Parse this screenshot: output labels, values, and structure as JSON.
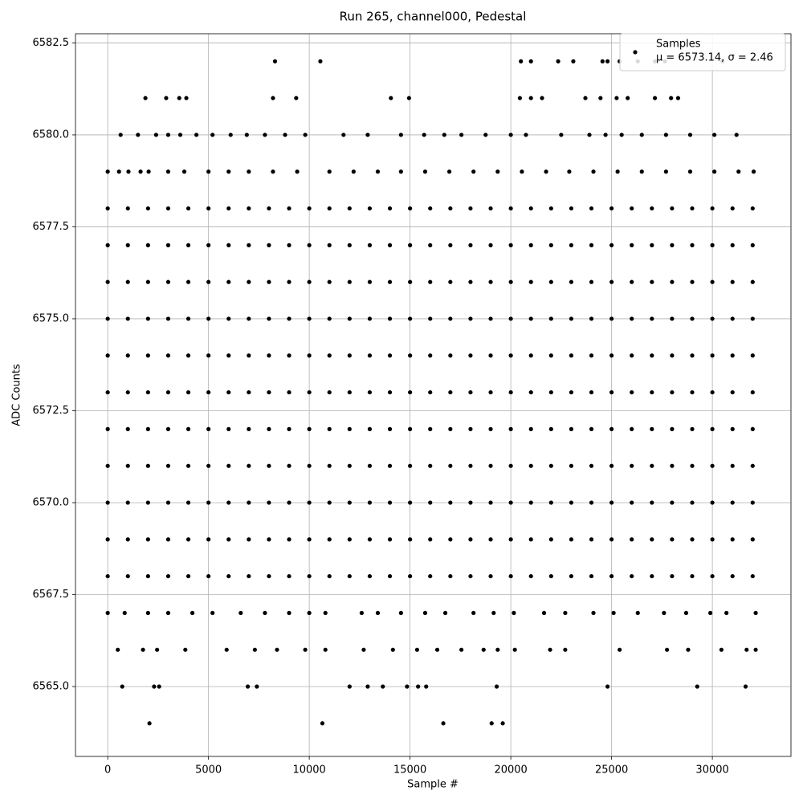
{
  "chart_data": {
    "type": "scatter",
    "title": "Run 265, channel000, Pedestal",
    "x_label": "Sample #",
    "y_label": "ADC Counts",
    "xlim": [
      -1600,
      33900
    ],
    "ylim": [
      6563.1,
      6582.75
    ],
    "xticks": [
      0,
      5000,
      10000,
      15000,
      20000,
      25000,
      30000
    ],
    "yticks": [
      {
        "value": 6565,
        "label": "6565.0"
      },
      {
        "value": 6567.5,
        "label": "6567.5"
      },
      {
        "value": 6570,
        "label": "6570.0"
      },
      {
        "value": 6572.5,
        "label": "6572.5"
      },
      {
        "value": 6575,
        "label": "6575.0"
      },
      {
        "value": 6577.5,
        "label": "6577.5"
      },
      {
        "value": 6580,
        "label": "6580.0"
      },
      {
        "value": 6582.5,
        "label": "6582.5"
      }
    ],
    "grid": true,
    "legend": "upper right",
    "legend_note": "μ = 6573.14, σ = 2.46",
    "series": [
      {
        "name": "Samples",
        "color": "#000000",
        "x": [
          0,
          1000,
          2000,
          3000,
          4000,
          5000,
          6000,
          7000,
          8000,
          9000,
          10000,
          11000,
          12000,
          13000,
          14000,
          15000,
          16000,
          17000,
          18000,
          19000,
          20000,
          21000,
          22000,
          23000,
          24000,
          25000,
          26000,
          27000,
          28000,
          29000,
          30000,
          31000,
          32000,
          0,
          1000,
          2000,
          3000,
          4000,
          5000,
          6000,
          7000,
          8000,
          9000,
          10000,
          11000,
          12000,
          13000,
          14000,
          15000,
          16000,
          17000,
          18000,
          19000,
          20000,
          21000,
          22000,
          23000,
          24000,
          25000,
          26000,
          27000,
          28000,
          29000,
          30000,
          31000,
          32000,
          0,
          1000,
          2000,
          3000,
          4000,
          5000,
          6000,
          7000,
          8000,
          9000,
          10000,
          11000,
          12000,
          13000,
          14000,
          15000,
          16000,
          17000,
          18000,
          19000,
          20000,
          21000,
          22000,
          23000,
          24000,
          25000,
          26000,
          27000,
          28000,
          29000,
          30000,
          31000,
          32000,
          0,
          1000,
          2000,
          3000,
          4000,
          5000,
          6000,
          7000,
          8000,
          9000,
          10000,
          11000,
          12000,
          13000,
          14000,
          15000,
          16000,
          17000,
          18000,
          19000,
          20000,
          21000,
          22000,
          23000,
          24000,
          25000,
          26000,
          27000,
          28000,
          29000,
          30000,
          31000,
          32000,
          0,
          1000,
          2000,
          3000,
          4000,
          5000,
          6000,
          7000,
          8000,
          9000,
          10000,
          11000,
          12000,
          13000,
          14000,
          15000,
          16000,
          17000,
          18000,
          19000,
          20000,
          21000,
          22000,
          23000,
          24000,
          25000,
          26000,
          27000,
          28000,
          29000,
          30000,
          31000,
          32000,
          0,
          1000,
          2000,
          3000,
          4000,
          5000,
          6000,
          7000,
          8000,
          9000,
          10000,
          11000,
          12000,
          13000,
          14000,
          15000,
          16000,
          17000,
          18000,
          19000,
          20000,
          21000,
          22000,
          23000,
          24000,
          25000,
          26000,
          27000,
          28000,
          29000,
          30000,
          31000,
          32000,
          0,
          1000,
          2000,
          3000,
          4000,
          5000,
          6000,
          7000,
          8000,
          9000,
          10000,
          11000,
          12000,
          13000,
          14000,
          15000,
          16000,
          17000,
          18000,
          19000,
          20000,
          21000,
          22000,
          23000,
          24000,
          25000,
          26000,
          27000,
          28000,
          29000,
          30000,
          31000,
          32000,
          0,
          1000,
          2000,
          3000,
          4000,
          5000,
          6000,
          7000,
          8000,
          9000,
          10000,
          11000,
          12000,
          13000,
          14000,
          15000,
          16000,
          17000,
          18000,
          19000,
          20000,
          21000,
          22000,
          23000,
          24000,
          25000,
          26000,
          27000,
          28000,
          29000,
          30000,
          31000,
          32000,
          0,
          1000,
          2000,
          3000,
          4000,
          5000,
          6000,
          7000,
          8000,
          9000,
          10000,
          11000,
          12000,
          13000,
          14000,
          15000,
          16000,
          17000,
          18000,
          19000,
          20000,
          21000,
          22000,
          23000,
          24000,
          25000,
          26000,
          27000,
          28000,
          29000,
          30000,
          31000,
          32000,
          0,
          1000,
          2000,
          3000,
          4000,
          5000,
          6000,
          7000,
          8000,
          9000,
          10000,
          11000,
          12000,
          13000,
          14000,
          15000,
          16000,
          17000,
          18000,
          19000,
          20000,
          21000,
          22000,
          23000,
          24000,
          25000,
          26000,
          27000,
          28000,
          29000,
          30000,
          31000,
          32000,
          0,
          1000,
          2000,
          3000,
          4000,
          5000,
          6000,
          7000,
          8000,
          9000,
          10000,
          11000,
          12000,
          13000,
          14000,
          15000,
          16000,
          17000,
          18000,
          19000,
          20000,
          21000,
          22000,
          23000,
          24000,
          25000,
          26000,
          27000,
          28000,
          29000,
          30000,
          31000,
          32000,
          8300,
          10550,
          20500,
          21000,
          22350,
          23100,
          24550,
          24800,
          25400,
          26300,
          27150,
          27650,
          30500,
          1870,
          2900,
          3550,
          3900,
          8200,
          9350,
          14050,
          14950,
          20450,
          21000,
          21550,
          23700,
          24450,
          25250,
          25800,
          27150,
          27950,
          28300,
          640,
          1500,
          2400,
          3000,
          3600,
          4400,
          5200,
          6100,
          6900,
          7800,
          8800,
          9800,
          11700,
          12900,
          14550,
          15700,
          16700,
          17550,
          18750,
          20000,
          20750,
          22500,
          23900,
          24700,
          25500,
          26500,
          27700,
          28900,
          30100,
          31200,
          0,
          560,
          1030,
          1630,
          2030,
          3000,
          3800,
          5000,
          6000,
          7000,
          8200,
          9400,
          11000,
          12200,
          13400,
          14550,
          15750,
          16950,
          18150,
          19350,
          20550,
          21750,
          22900,
          24100,
          25300,
          26500,
          27700,
          28900,
          30100,
          31300,
          32050,
          0,
          840,
          2000,
          3000,
          4200,
          5200,
          6600,
          7800,
          9000,
          10000,
          10800,
          12600,
          13400,
          14550,
          15750,
          16750,
          18150,
          19150,
          20150,
          21650,
          22700,
          24100,
          25100,
          26300,
          27600,
          28700,
          29900,
          30700,
          32150,
          500,
          1750,
          2450,
          3850,
          5900,
          7300,
          8400,
          9800,
          10800,
          12700,
          14150,
          15350,
          16350,
          17550,
          18650,
          19350,
          20200,
          21950,
          22700,
          25400,
          27750,
          28800,
          30450,
          31700,
          32150,
          720,
          2300,
          2550,
          6950,
          7400,
          12000,
          12900,
          13650,
          14850,
          15400,
          15800,
          19300,
          24800,
          29250,
          31650,
          2070,
          10650,
          16650,
          19050,
          19600
        ],
        "values": [
          6568,
          6568,
          6568,
          6568,
          6568,
          6568,
          6568,
          6568,
          6568,
          6568,
          6568,
          6568,
          6568,
          6568,
          6568,
          6568,
          6568,
          6568,
          6568,
          6568,
          6568,
          6568,
          6568,
          6568,
          6568,
          6568,
          6568,
          6568,
          6568,
          6568,
          6568,
          6568,
          6568,
          6569,
          6569,
          6569,
          6569,
          6569,
          6569,
          6569,
          6569,
          6569,
          6569,
          6569,
          6569,
          6569,
          6569,
          6569,
          6569,
          6569,
          6569,
          6569,
          6569,
          6569,
          6569,
          6569,
          6569,
          6569,
          6569,
          6569,
          6569,
          6569,
          6569,
          6569,
          6569,
          6569,
          6570,
          6570,
          6570,
          6570,
          6570,
          6570,
          6570,
          6570,
          6570,
          6570,
          6570,
          6570,
          6570,
          6570,
          6570,
          6570,
          6570,
          6570,
          6570,
          6570,
          6570,
          6570,
          6570,
          6570,
          6570,
          6570,
          6570,
          6570,
          6570,
          6570,
          6570,
          6570,
          6570,
          6571,
          6571,
          6571,
          6571,
          6571,
          6571,
          6571,
          6571,
          6571,
          6571,
          6571,
          6571,
          6571,
          6571,
          6571,
          6571,
          6571,
          6571,
          6571,
          6571,
          6571,
          6571,
          6571,
          6571,
          6571,
          6571,
          6571,
          6571,
          6571,
          6571,
          6571,
          6571,
          6571,
          6572,
          6572,
          6572,
          6572,
          6572,
          6572,
          6572,
          6572,
          6572,
          6572,
          6572,
          6572,
          6572,
          6572,
          6572,
          6572,
          6572,
          6572,
          6572,
          6572,
          6572,
          6572,
          6572,
          6572,
          6572,
          6572,
          6572,
          6572,
          6572,
          6572,
          6572,
          6572,
          6572,
          6573,
          6573,
          6573,
          6573,
          6573,
          6573,
          6573,
          6573,
          6573,
          6573,
          6573,
          6573,
          6573,
          6573,
          6573,
          6573,
          6573,
          6573,
          6573,
          6573,
          6573,
          6573,
          6573,
          6573,
          6573,
          6573,
          6573,
          6573,
          6573,
          6573,
          6573,
          6573,
          6573,
          6574,
          6574,
          6574,
          6574,
          6574,
          6574,
          6574,
          6574,
          6574,
          6574,
          6574,
          6574,
          6574,
          6574,
          6574,
          6574,
          6574,
          6574,
          6574,
          6574,
          6574,
          6574,
          6574,
          6574,
          6574,
          6574,
          6574,
          6574,
          6574,
          6574,
          6574,
          6574,
          6574,
          6575,
          6575,
          6575,
          6575,
          6575,
          6575,
          6575,
          6575,
          6575,
          6575,
          6575,
          6575,
          6575,
          6575,
          6575,
          6575,
          6575,
          6575,
          6575,
          6575,
          6575,
          6575,
          6575,
          6575,
          6575,
          6575,
          6575,
          6575,
          6575,
          6575,
          6575,
          6575,
          6575,
          6576,
          6576,
          6576,
          6576,
          6576,
          6576,
          6576,
          6576,
          6576,
          6576,
          6576,
          6576,
          6576,
          6576,
          6576,
          6576,
          6576,
          6576,
          6576,
          6576,
          6576,
          6576,
          6576,
          6576,
          6576,
          6576,
          6576,
          6576,
          6576,
          6576,
          6576,
          6576,
          6576,
          6577,
          6577,
          6577,
          6577,
          6577,
          6577,
          6577,
          6577,
          6577,
          6577,
          6577,
          6577,
          6577,
          6577,
          6577,
          6577,
          6577,
          6577,
          6577,
          6577,
          6577,
          6577,
          6577,
          6577,
          6577,
          6577,
          6577,
          6577,
          6577,
          6577,
          6577,
          6577,
          6577,
          6578,
          6578,
          6578,
          6578,
          6578,
          6578,
          6578,
          6578,
          6578,
          6578,
          6578,
          6578,
          6578,
          6578,
          6578,
          6578,
          6578,
          6578,
          6578,
          6578,
          6578,
          6578,
          6578,
          6578,
          6578,
          6578,
          6578,
          6578,
          6578,
          6578,
          6578,
          6578,
          6578,
          6582,
          6582,
          6582,
          6582,
          6582,
          6582,
          6582,
          6582,
          6582,
          6582,
          6582,
          6582,
          6582,
          6581,
          6581,
          6581,
          6581,
          6581,
          6581,
          6581,
          6581,
          6581,
          6581,
          6581,
          6581,
          6581,
          6581,
          6581,
          6581,
          6581,
          6581,
          6580,
          6580,
          6580,
          6580,
          6580,
          6580,
          6580,
          6580,
          6580,
          6580,
          6580,
          6580,
          6580,
          6580,
          6580,
          6580,
          6580,
          6580,
          6580,
          6580,
          6580,
          6580,
          6580,
          6580,
          6580,
          6580,
          6580,
          6580,
          6580,
          6580,
          6579,
          6579,
          6579,
          6579,
          6579,
          6579,
          6579,
          6579,
          6579,
          6579,
          6579,
          6579,
          6579,
          6579,
          6579,
          6579,
          6579,
          6579,
          6579,
          6579,
          6579,
          6579,
          6579,
          6579,
          6579,
          6579,
          6579,
          6579,
          6579,
          6579,
          6579,
          6567,
          6567,
          6567,
          6567,
          6567,
          6567,
          6567,
          6567,
          6567,
          6567,
          6567,
          6567,
          6567,
          6567,
          6567,
          6567,
          6567,
          6567,
          6567,
          6567,
          6567,
          6567,
          6567,
          6567,
          6567,
          6567,
          6567,
          6567,
          6567,
          6566,
          6566,
          6566,
          6566,
          6566,
          6566,
          6566,
          6566,
          6566,
          6566,
          6566,
          6566,
          6566,
          6566,
          6566,
          6566,
          6566,
          6566,
          6566,
          6566,
          6566,
          6566,
          6566,
          6566,
          6566,
          6565,
          6565,
          6565,
          6565,
          6565,
          6565,
          6565,
          6565,
          6565,
          6565,
          6565,
          6565,
          6565,
          6565,
          6565,
          6564,
          6564,
          6564,
          6564,
          6564
        ]
      }
    ]
  }
}
